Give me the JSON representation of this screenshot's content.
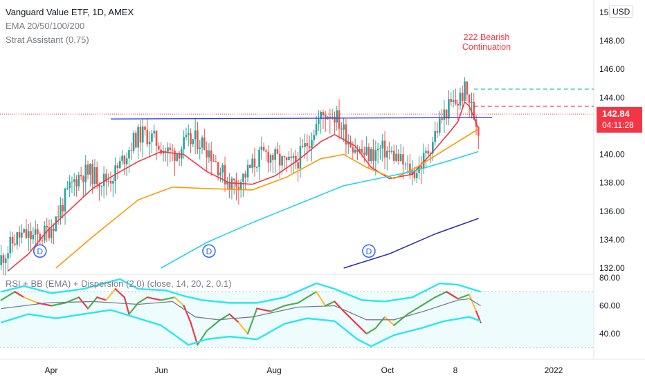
{
  "legend": {
    "title": "Vanguard Value ETF, 1D, AMEX",
    "indicator1": "EMA 20/50/100/200",
    "indicator2": "Strat Assistant (0.75)",
    "rsi": "RSI + BB (EMA) + Dispersion (2.0) (close, 14, 20, 2, 0.1)"
  },
  "currency_badge": "USD",
  "last_price": {
    "price": "142.84",
    "countdown": "04:11:28"
  },
  "annotation": {
    "line1": "222 Bearish",
    "line2": "Continuation"
  },
  "dividend_marker": "D",
  "colors": {
    "up": "#26a69a",
    "down": "#ef5350",
    "ema20": "#f23645",
    "ema50": "#ff9800",
    "ema100": "#22d3ee",
    "ema200": "#2e2eb8",
    "trendline": "#2a3fd8",
    "rsi_bb": "#2ee6f0"
  },
  "chart_data": [
    {
      "type": "candlestick",
      "title": "Vanguard Value ETF, 1D, AMEX",
      "x_ticks": [
        "Apr",
        "Jun",
        "Aug",
        "Oct",
        "8",
        "2022"
      ],
      "y_ticks": [
        132,
        134,
        136,
        138,
        140,
        142,
        144,
        146,
        148,
        150
      ],
      "ylim": [
        132,
        150
      ],
      "series": [
        {
          "name": "EMA 20",
          "type": "line",
          "points": [
            [
              3,
              131.8
            ],
            [
              12,
              133.0
            ],
            [
              20,
              134.6
            ],
            [
              30,
              136.1
            ],
            [
              40,
              137.6
            ],
            [
              50,
              138.6
            ],
            [
              60,
              139.5
            ],
            [
              70,
              140.2
            ],
            [
              80,
              140.0
            ],
            [
              90,
              138.8
            ],
            [
              100,
              138.0
            ],
            [
              110,
              137.9
            ],
            [
              120,
              138.5
            ],
            [
              130,
              139.6
            ],
            [
              140,
              140.9
            ],
            [
              146,
              141.4
            ],
            [
              155,
              140.6
            ],
            [
              162,
              139.1
            ],
            [
              170,
              138.3
            ],
            [
              180,
              138.6
            ],
            [
              188,
              140.0
            ],
            [
              196,
              141.5
            ],
            [
              200,
              142.3
            ],
            [
              203,
              143.7
            ],
            [
              205,
              143.4
            ],
            [
              209,
              141.8
            ]
          ]
        },
        {
          "name": "EMA 50",
          "type": "line",
          "points": [
            [
              24,
              132.0
            ],
            [
              40,
              134.2
            ],
            [
              60,
              136.8
            ],
            [
              75,
              137.7
            ],
            [
              90,
              137.6
            ],
            [
              110,
              137.5
            ],
            [
              125,
              138.4
            ],
            [
              140,
              139.7
            ],
            [
              150,
              140.0
            ],
            [
              160,
              139.1
            ],
            [
              172,
              138.3
            ],
            [
              182,
              139.1
            ],
            [
              195,
              140.4
            ],
            [
              209,
              141.8
            ]
          ]
        },
        {
          "name": "EMA 100",
          "type": "line",
          "points": [
            [
              70,
              132.0
            ],
            [
              90,
              133.8
            ],
            [
              110,
              135.2
            ],
            [
              130,
              136.5
            ],
            [
              150,
              137.8
            ],
            [
              165,
              138.3
            ],
            [
              180,
              138.8
            ],
            [
              195,
              139.5
            ],
            [
              209,
              140.2
            ]
          ]
        },
        {
          "name": "EMA 200",
          "type": "line",
          "points": [
            [
              150,
              132.0
            ],
            [
              170,
              133.0
            ],
            [
              190,
              134.4
            ],
            [
              209,
              135.5
            ]
          ]
        }
      ],
      "trendline": [
        [
          48,
          142.5
        ],
        [
          215,
          142.6
        ]
      ],
      "levels": [
        {
          "type": "target",
          "value": 144.6
        },
        {
          "type": "stop",
          "value": 143.4
        },
        {
          "type": "last_price",
          "value": 142.84
        }
      ],
      "dividends": [
        [
          17,
          133.2
        ],
        [
          91,
          133.2
        ],
        [
          161,
          133.2
        ]
      ]
    },
    {
      "type": "line",
      "title": "RSI + BB (EMA) + Dispersion (2.0) (close, 14, 20, 2, 0.1)",
      "y_ticks": [
        40,
        60,
        80
      ],
      "ylim": [
        27,
        82
      ],
      "band": [
        30,
        70
      ],
      "series": [
        {
          "name": "RSI",
          "points": [
            [
              0,
              64
            ],
            [
              6,
              70
            ],
            [
              10,
              66
            ],
            [
              16,
              62
            ],
            [
              22,
              60
            ],
            [
              28,
              62
            ],
            [
              34,
              66
            ],
            [
              38,
              58
            ],
            [
              42,
              66
            ],
            [
              46,
              64
            ],
            [
              50,
              72
            ],
            [
              54,
              66
            ],
            [
              56,
              54
            ],
            [
              60,
              62
            ],
            [
              64,
              66
            ],
            [
              70,
              64
            ],
            [
              76,
              66
            ],
            [
              80,
              60
            ],
            [
              83,
              48
            ],
            [
              86,
              32
            ],
            [
              90,
              42
            ],
            [
              96,
              50
            ],
            [
              100,
              54
            ],
            [
              104,
              48
            ],
            [
              108,
              40
            ],
            [
              112,
              58
            ],
            [
              118,
              56
            ],
            [
              124,
              60
            ],
            [
              130,
              62
            ],
            [
              134,
              66
            ],
            [
              138,
              70
            ],
            [
              142,
              60
            ],
            [
              146,
              63
            ],
            [
              150,
              56
            ],
            [
              155,
              48
            ],
            [
              160,
              40
            ],
            [
              164,
              44
            ],
            [
              168,
              52
            ],
            [
              172,
              46
            ],
            [
              178,
              54
            ],
            [
              184,
              60
            ],
            [
              190,
              66
            ],
            [
              195,
              70
            ],
            [
              200,
              65
            ],
            [
              205,
              68
            ],
            [
              208,
              56
            ],
            [
              210,
              48
            ]
          ]
        },
        {
          "name": "RSI EMA",
          "points": [
            [
              0,
              58
            ],
            [
              20,
              62
            ],
            [
              40,
              63
            ],
            [
              60,
              61
            ],
            [
              75,
              63
            ],
            [
              85,
              52
            ],
            [
              95,
              50
            ],
            [
              110,
              52
            ],
            [
              130,
              59
            ],
            [
              146,
              60
            ],
            [
              160,
              50
            ],
            [
              172,
              50
            ],
            [
              185,
              56
            ],
            [
              200,
              64
            ],
            [
              205,
              65
            ],
            [
              210,
              60
            ]
          ]
        },
        {
          "name": "Upper Band",
          "points": [
            [
              0,
              70
            ],
            [
              10,
              74
            ],
            [
              22,
              69
            ],
            [
              36,
              72
            ],
            [
              52,
              79
            ],
            [
              60,
              72
            ],
            [
              72,
              71
            ],
            [
              80,
              67
            ],
            [
              88,
              64
            ],
            [
              100,
              62
            ],
            [
              112,
              62
            ],
            [
              124,
              66
            ],
            [
              138,
              76
            ],
            [
              146,
              72
            ],
            [
              158,
              64
            ],
            [
              168,
              63
            ],
            [
              180,
              66
            ],
            [
              192,
              76
            ],
            [
              200,
              75
            ],
            [
              210,
              70
            ]
          ]
        },
        {
          "name": "Lower Band",
          "points": [
            [
              0,
              48
            ],
            [
              12,
              54
            ],
            [
              24,
              51
            ],
            [
              36,
              54
            ],
            [
              48,
              57
            ],
            [
              58,
              52
            ],
            [
              70,
              46
            ],
            [
              82,
              32
            ],
            [
              90,
              36
            ],
            [
              100,
              38
            ],
            [
              112,
              36
            ],
            [
              124,
              47
            ],
            [
              134,
              51
            ],
            [
              146,
              49
            ],
            [
              156,
              36
            ],
            [
              162,
              31
            ],
            [
              172,
              39
            ],
            [
              184,
              44
            ],
            [
              194,
              49
            ],
            [
              205,
              52
            ],
            [
              210,
              49
            ]
          ]
        }
      ]
    }
  ]
}
